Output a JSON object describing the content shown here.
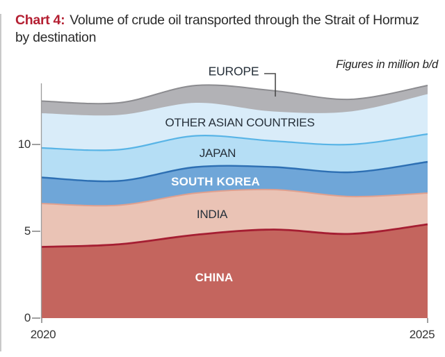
{
  "title": {
    "prefix": "Chart 4:",
    "text": "Volume of crude oil transported through the Strait of Hormuz by destination"
  },
  "note": "Figures in million b/d",
  "axes": {
    "y_ticks": [
      "10",
      "5",
      "0"
    ],
    "x_ticks": [
      "2020",
      "2025"
    ]
  },
  "colors": {
    "accent_title": "#b41f32",
    "axis": "#9b9b9b",
    "tick": "#888888",
    "page_border": "#c9c9c9",
    "callout_line": "#4a4a4a"
  },
  "chart_data": {
    "type": "area",
    "stacked": true,
    "title": "Volume of crude oil transported through the Strait of Hormuz by destination",
    "note": "Figures in million b/d",
    "x": [
      2020,
      2021,
      2022,
      2023,
      2024,
      2025
    ],
    "xlim": [
      2020,
      2025
    ],
    "ylim": [
      0,
      14
    ],
    "y_ticks": [
      0,
      5,
      10
    ],
    "grid": false,
    "legend_position": "inline-labels",
    "series": [
      {
        "name": "CHINA",
        "values": [
          4.1,
          4.25,
          4.8,
          5.1,
          4.85,
          5.4
        ],
        "fill": "#c4655e",
        "line_color": "#a51e32",
        "line_width": 2.8
      },
      {
        "name": "INDIA",
        "values": [
          2.5,
          2.25,
          2.4,
          2.3,
          2.15,
          1.8
        ],
        "fill": "#eac3b5",
        "line_color": "#dfa08f",
        "line_width": 2.0
      },
      {
        "name": "SOUTH KOREA",
        "values": [
          1.5,
          1.4,
          1.5,
          1.3,
          1.4,
          1.8
        ],
        "fill": "#6fa6d8",
        "line_color": "#2d6fb3",
        "line_width": 2.4
      },
      {
        "name": "JAPAN",
        "values": [
          1.7,
          1.8,
          1.8,
          1.5,
          1.6,
          1.6
        ],
        "fill": "#b5def5",
        "line_color": "#58b4e6",
        "line_width": 2.2
      },
      {
        "name": "OTHER ASIAN COUNTRIES",
        "values": [
          2.0,
          2.0,
          1.9,
          1.7,
          1.9,
          2.3
        ],
        "fill": "#d9ecf9",
        "line_color": "",
        "line_width": 0
      },
      {
        "name": "EUROPE",
        "values": [
          0.7,
          0.7,
          1.0,
          1.2,
          0.7,
          0.5
        ],
        "fill": "#b2b2b6",
        "line_color": "#8c8c90",
        "line_width": 2.0
      }
    ]
  }
}
